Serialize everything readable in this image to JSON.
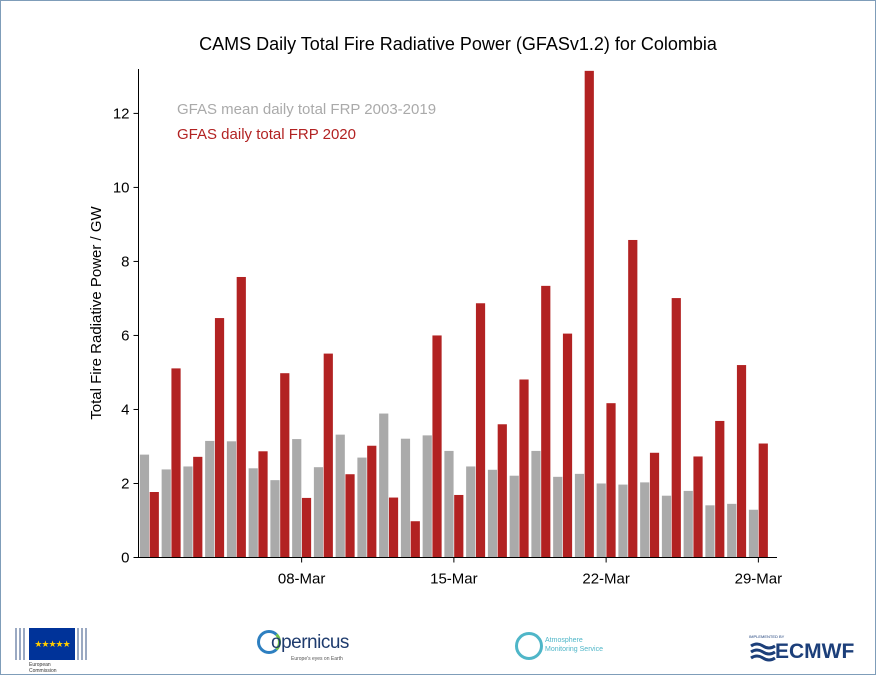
{
  "chart_data": {
    "type": "bar",
    "title": "CAMS Daily Total Fire Radiative Power (GFASv1.2) for Colombia",
    "xlabel": "",
    "ylabel": "Total Fire Radiative Power / GW",
    "ylim": [
      0,
      13.2
    ],
    "yticks": [
      0,
      2,
      4,
      6,
      8,
      10,
      12
    ],
    "xtick_labels": [
      {
        "label": "08-Mar",
        "day": 8
      },
      {
        "label": "15-Mar",
        "day": 15
      },
      {
        "label": "22-Mar",
        "day": 22
      },
      {
        "label": "29-Mar",
        "day": 29
      }
    ],
    "x": [
      1,
      2,
      3,
      4,
      5,
      6,
      7,
      8,
      9,
      10,
      11,
      12,
      13,
      14,
      15,
      16,
      17,
      18,
      19,
      20,
      21,
      22,
      23,
      24,
      25,
      26,
      27,
      28,
      29,
      30
    ],
    "legend_position": "top-left",
    "series": [
      {
        "name": "GFAS mean daily total FRP 2003-2019",
        "color": "#aaaaaa",
        "values": [
          2.78,
          2.38,
          2.46,
          3.15,
          3.14,
          2.41,
          2.09,
          3.2,
          2.44,
          3.32,
          2.7,
          3.89,
          3.21,
          3.3,
          2.88,
          2.46,
          2.37,
          2.21,
          2.88,
          2.18,
          2.26,
          2.0,
          1.97,
          2.03,
          1.67,
          1.8,
          1.41,
          1.45,
          1.29,
          null
        ]
      },
      {
        "name": "GFAS daily total FRP 2020",
        "color": "#b22222",
        "values": [
          1.77,
          5.11,
          2.72,
          6.47,
          7.58,
          2.87,
          4.98,
          1.61,
          5.51,
          2.25,
          3.02,
          1.62,
          0.98,
          6.0,
          1.69,
          6.87,
          3.6,
          4.81,
          7.34,
          6.05,
          13.15,
          4.17,
          8.58,
          2.83,
          7.01,
          2.73,
          3.69,
          5.2,
          3.08,
          null
        ]
      }
    ]
  },
  "footer": {
    "eu_text_1": "European",
    "eu_text_2": "Commission",
    "copernicus_name": "opernicus",
    "copernicus_tagline": "Europe's eyes on Earth",
    "ams_line1": "Atmosphere",
    "ams_line2": "Monitoring Service",
    "ecmwf_small": "IMPLEMENTED BY",
    "ecmwf_name": "ECMWF"
  }
}
